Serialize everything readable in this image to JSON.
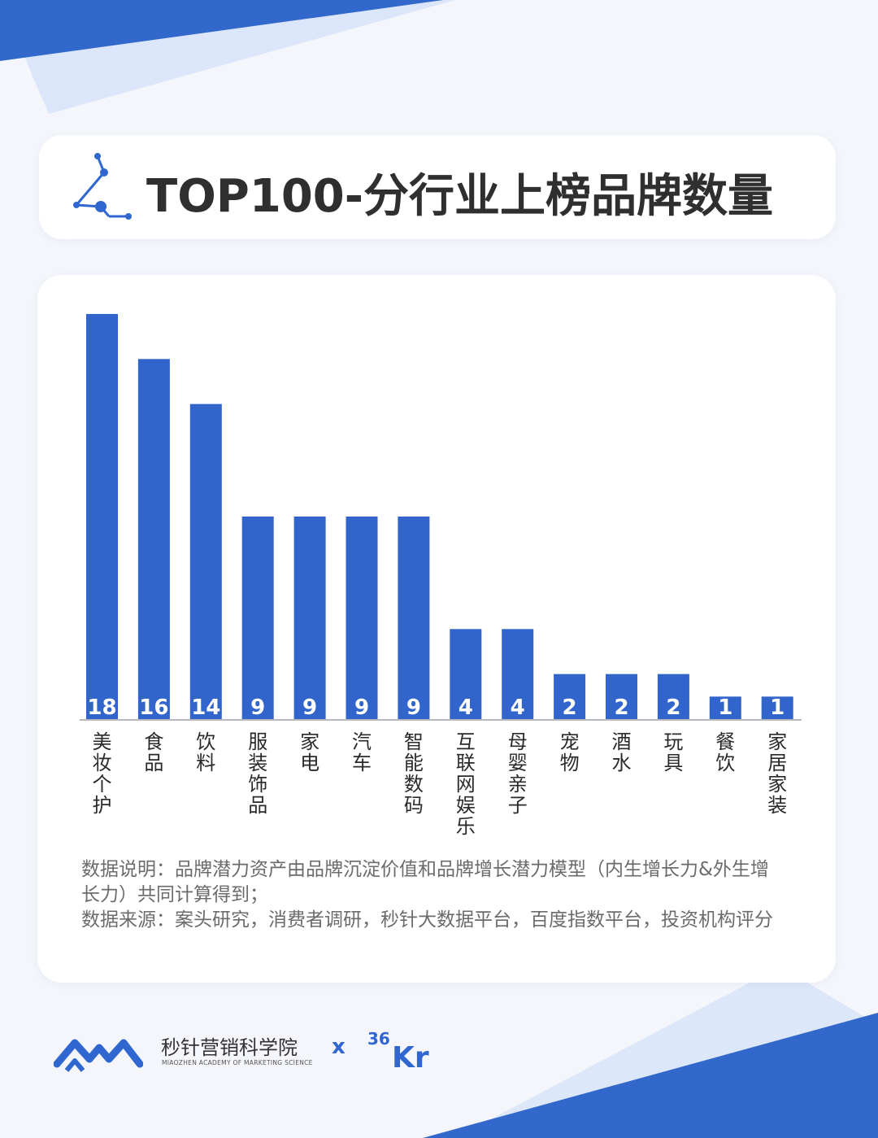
{
  "title": "TOP100-分行业上榜品牌数量",
  "colors": {
    "bar": "#3265cc",
    "accent": "#2f66d0"
  },
  "chart_data": {
    "type": "bar",
    "categories": [
      "美妆个护",
      "食品",
      "饮料",
      "服装饰品",
      "家电",
      "汽车",
      "智能数码",
      "互联网娱乐",
      "母婴亲子",
      "宠物",
      "酒水",
      "玩具",
      "餐饮",
      "家居家装"
    ],
    "values": [
      18,
      16,
      14,
      9,
      9,
      9,
      9,
      4,
      4,
      2,
      2,
      2,
      1,
      1
    ],
    "data_labels": true,
    "grid": false,
    "ylim": [
      0,
      18
    ]
  },
  "notes": {
    "line1": "数据说明：品牌潜力资产由品牌沉淀价值和品牌增长潜力模型（内生增长力&外生增",
    "line2": "长力）共同计算得到；",
    "line3": "数据来源：案头研究，消费者调研，秒针大数据平台，百度指数平台，投资机构评分"
  },
  "footer": {
    "brand_cn": "秒针营销科学院",
    "brand_en": "MIAOZHEN ACADEMY OF MARKETING SCIENCE",
    "separator": "x",
    "partner": "36Kr"
  },
  "icons": {
    "title": "constellation-icon",
    "brand": "miaozhen-logo-icon",
    "partner": "36kr-logo"
  }
}
